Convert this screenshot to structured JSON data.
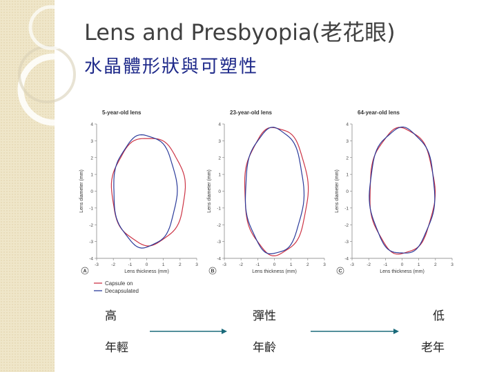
{
  "title": "Lens and Presbyopia(老花眼)",
  "subtitle": "水晶體形狀與可塑性",
  "colors": {
    "capsule": "#cc3344",
    "decapsulated": "#2a3a9a",
    "arrow": "#1a6a7a",
    "title": "#404040",
    "subtitle": "#1f2a8a"
  },
  "chart_data": [
    {
      "type": "line",
      "panel": "A",
      "title": "5-year-old lens",
      "xlabel": "Lens thickness (mm)",
      "ylabel": "Lens diameter (mm)",
      "xlim": [
        -3,
        3
      ],
      "ylim": [
        -4,
        4
      ],
      "xticks": [
        -3,
        -2,
        -1,
        0,
        1,
        2,
        3
      ],
      "yticks": [
        4,
        3,
        2,
        1,
        0,
        -1,
        -2,
        -3,
        -4
      ],
      "series": [
        {
          "name": "Capsule on",
          "shape": "ellipse",
          "center": [
            0.1,
            0.0
          ],
          "half_thickness": 2.2,
          "half_diameter": 3.2,
          "color": "#cc3344"
        },
        {
          "name": "Decapsulated",
          "shape": "ellipse",
          "center": [
            -0.1,
            0.0
          ],
          "half_thickness": 1.9,
          "half_diameter": 3.35,
          "color": "#2a3a9a"
        }
      ]
    },
    {
      "type": "line",
      "panel": "B",
      "title": "23-year-old lens",
      "xlabel": "Lens thickness (mm)",
      "ylabel": "Lens diameter (mm)",
      "xlim": [
        -3,
        3
      ],
      "ylim": [
        -4,
        4
      ],
      "xticks": [
        -3,
        -2,
        -1,
        0,
        1,
        2,
        3
      ],
      "yticks": [
        4,
        3,
        2,
        1,
        0,
        -1,
        -2,
        -3,
        -4
      ],
      "series": [
        {
          "name": "Capsule on",
          "shape": "ellipse",
          "center": [
            0.1,
            0.0
          ],
          "half_thickness": 1.9,
          "half_diameter": 3.8,
          "color": "#cc3344"
        },
        {
          "name": "Decapsulated",
          "shape": "ellipse",
          "center": [
            0.0,
            0.0
          ],
          "half_thickness": 1.75,
          "half_diameter": 3.75,
          "color": "#2a3a9a"
        }
      ]
    },
    {
      "type": "line",
      "panel": "C",
      "title": "64-year-old lens",
      "xlabel": "Lens thickness (mm)",
      "ylabel": "Lens diameter (mm)",
      "xlim": [
        -3,
        3
      ],
      "ylim": [
        -4,
        4
      ],
      "xticks": [
        -3,
        -2,
        -1,
        0,
        1,
        2,
        3
      ],
      "yticks": [
        4,
        3,
        2,
        1,
        0,
        -1,
        -2,
        -3,
        -4
      ],
      "series": [
        {
          "name": "Capsule on",
          "shape": "ellipse",
          "center": [
            0.0,
            0.0
          ],
          "half_thickness": 1.95,
          "half_diameter": 3.75,
          "color": "#cc3344"
        },
        {
          "name": "Decapsulated",
          "shape": "ellipse",
          "center": [
            0.0,
            0.0
          ],
          "half_thickness": 1.95,
          "half_diameter": 3.75,
          "color": "#2a3a9a"
        }
      ]
    }
  ],
  "legend": {
    "items": [
      "Capsule on",
      "Decapsulated"
    ]
  },
  "bottom_labels": {
    "row1": {
      "left": "高",
      "middle": "彈性",
      "right": "低"
    },
    "row2": {
      "left": "年輕",
      "middle": "年齡",
      "right": "老年"
    }
  }
}
